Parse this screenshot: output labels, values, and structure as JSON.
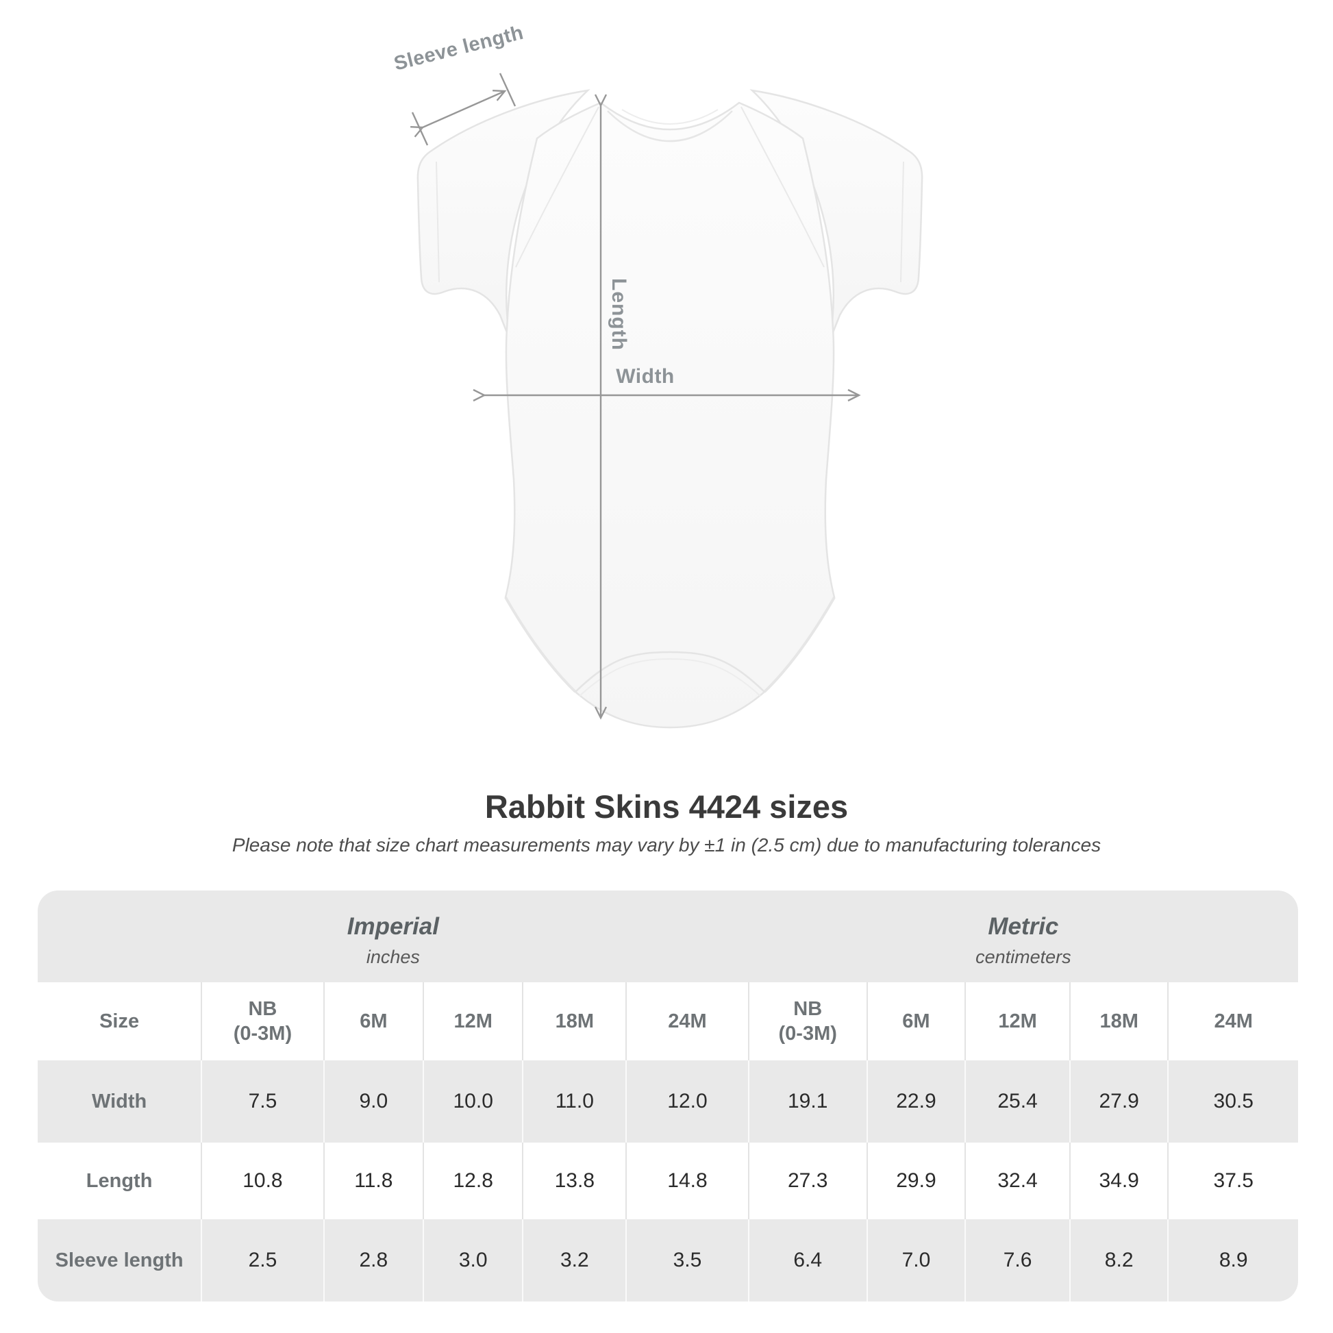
{
  "figure": {
    "labels": {
      "sleeve_length": "Sleeve length",
      "length": "Length",
      "width": "Width"
    },
    "line_color": "#979797",
    "label_color": "#8d9397",
    "garment": "infant-bodysuit-front-view"
  },
  "title": "Rabbit Skins 4424 sizes",
  "note": "Please note that size chart measurements may vary by ±1 in (2.5 cm) due to manufacturing tolerances",
  "chart_data": {
    "type": "table",
    "title": "Rabbit Skins 4424 sizes",
    "note": "Please note that size chart measurements may vary by ±1 in (2.5 cm) due to manufacturing tolerances",
    "size_col_header": "Size",
    "groups": [
      {
        "label": "Imperial",
        "unit": "inches"
      },
      {
        "label": "Metric",
        "unit": "centimeters"
      }
    ],
    "columns": [
      "NB\n(0-3M)",
      "6M",
      "12M",
      "18M",
      "24M",
      "NB\n(0-3M)",
      "6M",
      "12M",
      "18M",
      "24M"
    ],
    "rows": [
      {
        "label": "Width",
        "values": [
          "7.5",
          "9.0",
          "10.0",
          "11.0",
          "12.0",
          "19.1",
          "22.9",
          "25.4",
          "27.9",
          "30.5"
        ]
      },
      {
        "label": "Length",
        "values": [
          "10.8",
          "11.8",
          "12.8",
          "13.8",
          "14.8",
          "27.3",
          "29.9",
          "32.4",
          "34.9",
          "37.5"
        ]
      },
      {
        "label": "Sleeve length",
        "values": [
          "2.5",
          "2.8",
          "3.0",
          "3.2",
          "3.5",
          "6.4",
          "7.0",
          "7.6",
          "8.2",
          "8.9"
        ]
      }
    ],
    "colors": {
      "band_gray": "#e9e9e9",
      "header_text": "#6e7376",
      "value_text": "#2b2b2b",
      "group_text": "#5b6164"
    }
  }
}
